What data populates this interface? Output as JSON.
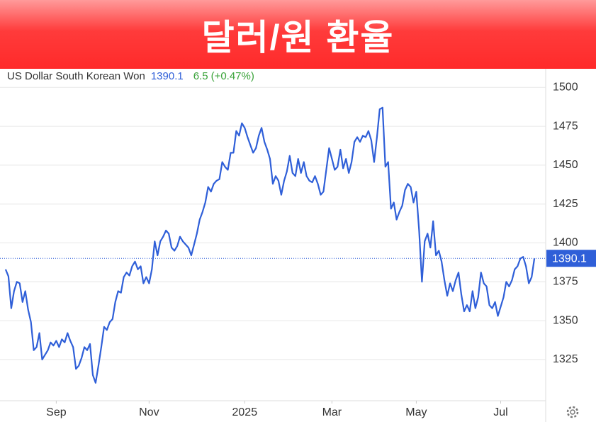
{
  "title": "달러/원 환율",
  "chart_data": {
    "type": "line",
    "name": "US Dollar South Korean Won",
    "change": "6.5",
    "change_pct": "(+0.47%)",
    "series": [
      {
        "color": "#2f5fd8",
        "values": [
          1383,
          1378.5,
          1358,
          1369,
          1375,
          1374,
          1362,
          1369,
          1357,
          1349,
          1331,
          1333,
          1342,
          1325,
          1328,
          1331,
          1336,
          1334,
          1337,
          1333,
          1338,
          1336,
          1342,
          1337,
          1333,
          1319,
          1321,
          1326,
          1333,
          1331,
          1335,
          1315,
          1310,
          1321,
          1333,
          1346,
          1344,
          1349,
          1351,
          1362,
          1369,
          1368,
          1378,
          1381,
          1379,
          1385,
          1388,
          1383,
          1385,
          1374,
          1378,
          1374,
          1383,
          1401,
          1392,
          1401,
          1404,
          1408,
          1406,
          1397,
          1395,
          1398,
          1404,
          1401,
          1399,
          1397,
          1392,
          1399,
          1406,
          1415,
          1420,
          1426,
          1436,
          1433,
          1438,
          1440,
          1441,
          1452,
          1449,
          1447,
          1458,
          1458,
          1472,
          1469,
          1477,
          1474,
          1468,
          1463,
          1458,
          1461,
          1469,
          1474,
          1465,
          1460,
          1454,
          1438,
          1443,
          1440,
          1431,
          1440,
          1446,
          1456,
          1445,
          1443,
          1454,
          1445,
          1452,
          1443,
          1440,
          1439,
          1443,
          1438,
          1431,
          1433,
          1447,
          1461,
          1454,
          1447,
          1449,
          1460,
          1448,
          1454,
          1445,
          1452,
          1465,
          1468,
          1465,
          1469,
          1468,
          1472,
          1466,
          1452,
          1468,
          1486,
          1487,
          1449,
          1452,
          1422,
          1426,
          1415,
          1420,
          1424,
          1434,
          1438,
          1436,
          1426,
          1433,
          1408,
          1375,
          1401,
          1406,
          1397,
          1414,
          1392,
          1395,
          1388,
          1376,
          1366,
          1374,
          1369,
          1376,
          1381,
          1367,
          1356,
          1360,
          1356,
          1369,
          1358,
          1365,
          1381,
          1374,
          1372,
          1360,
          1358,
          1362,
          1353,
          1359,
          1365,
          1375,
          1372,
          1376,
          1383,
          1385,
          1390,
          1391,
          1385,
          1374,
          1378,
          1390.1
        ]
      }
    ],
    "xlim": [
      -2,
      192
    ],
    "xticks": [
      {
        "value": 18,
        "label": "Sep"
      },
      {
        "value": 51,
        "label": "Nov"
      },
      {
        "value": 85,
        "label": "2025"
      },
      {
        "value": 116,
        "label": "Mar"
      },
      {
        "value": 146,
        "label": "May"
      },
      {
        "value": 176,
        "label": "Jul"
      }
    ],
    "ylim": [
      1298.5,
      1512
    ],
    "yticks": [
      1325,
      1350,
      1375,
      1400,
      1425,
      1450,
      1475,
      1500
    ],
    "grid": true
  }
}
